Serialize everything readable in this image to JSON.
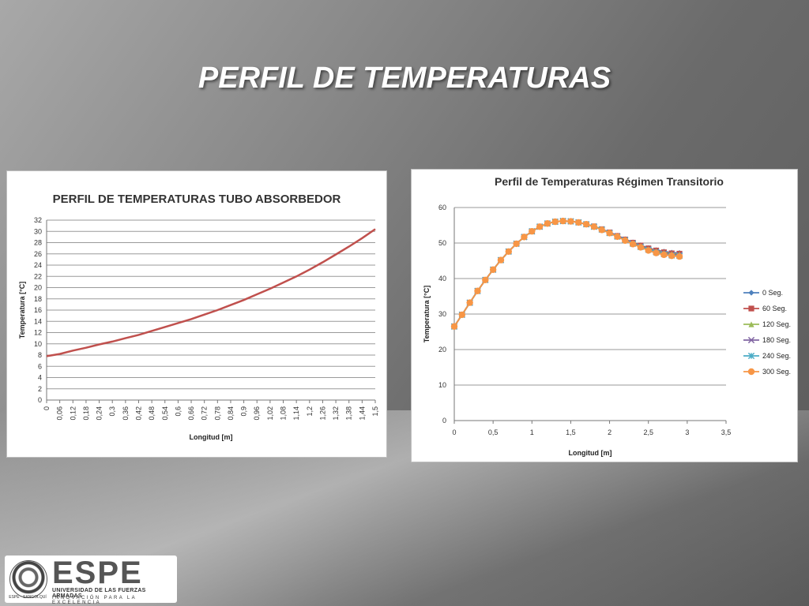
{
  "slide": {
    "title": "PERFIL DE TEMPERATURAS"
  },
  "logo": {
    "seal_text": "ESPE · SANGOLQUÍ",
    "word": "ESPE",
    "line1": "UNIVERSIDAD DE LAS FUERZAS ARMADAS",
    "line2": "INNOVACIÓN PARA LA EXCELENCIA"
  },
  "chart_data": [
    {
      "type": "line",
      "title": "PERFIL DE TEMPERATURAS TUBO ABSORBEDOR",
      "xlabel": "Longitud [m]",
      "ylabel": "Temperatura [°C]",
      "x_tick_labels": [
        "0",
        "0,06",
        "0,12",
        "0,18",
        "0,24",
        "0,3",
        "0,36",
        "0,42",
        "0,48",
        "0,54",
        "0,6",
        "0,66",
        "0,72",
        "0,78",
        "0,84",
        "0,9",
        "0,96",
        "1,02",
        "1,08",
        "1,14",
        "1,2",
        "1,26",
        "1,32",
        "1,38",
        "1,44",
        "1,5"
      ],
      "y_tick_labels": [
        "0",
        "2",
        "4",
        "6",
        "8",
        "10",
        "12",
        "14",
        "16",
        "18",
        "20",
        "22",
        "24",
        "26",
        "28",
        "30",
        "32"
      ],
      "ylim": [
        0,
        32
      ],
      "xlim": [
        0,
        1.5
      ],
      "grid": true,
      "color": "#c0504d",
      "x": [
        0,
        0.06,
        0.12,
        0.18,
        0.24,
        0.3,
        0.36,
        0.42,
        0.48,
        0.54,
        0.6,
        0.66,
        0.72,
        0.78,
        0.84,
        0.9,
        0.96,
        1.02,
        1.08,
        1.14,
        1.2,
        1.26,
        1.32,
        1.38,
        1.44,
        1.5
      ],
      "values": [
        7.8,
        8.2,
        8.8,
        9.3,
        9.9,
        10.4,
        11.0,
        11.6,
        12.3,
        13.0,
        13.7,
        14.4,
        15.2,
        16.0,
        16.9,
        17.8,
        18.8,
        19.8,
        20.9,
        22.0,
        23.2,
        24.5,
        25.9,
        27.3,
        28.8,
        30.4
      ]
    },
    {
      "type": "line",
      "title": "Perfil de Temperaturas Régimen Transitorio",
      "xlabel": "Longitud [m]",
      "ylabel": "Temperatura [°C]",
      "x_tick_labels": [
        "0",
        "0,5",
        "1",
        "1,5",
        "2",
        "2,5",
        "3",
        "3,5"
      ],
      "y_tick_labels": [
        "0",
        "10",
        "20",
        "30",
        "40",
        "50",
        "60"
      ],
      "xlim": [
        0,
        3.5
      ],
      "ylim": [
        0,
        60
      ],
      "grid": true,
      "legend_position": "right",
      "x": [
        0,
        0.1,
        0.2,
        0.3,
        0.4,
        0.5,
        0.6,
        0.7,
        0.8,
        0.9,
        1.0,
        1.1,
        1.2,
        1.3,
        1.4,
        1.5,
        1.6,
        1.7,
        1.8,
        1.9,
        2.0,
        2.1,
        2.2,
        2.3,
        2.4,
        2.5,
        2.6,
        2.7,
        2.8,
        2.9
      ],
      "series": [
        {
          "name": "0 Seg.",
          "color": "#4f81bd",
          "marker": "diamond",
          "values": [
            26.5,
            29.8,
            33.2,
            36.5,
            39.6,
            42.5,
            45.2,
            47.6,
            49.8,
            51.7,
            53.3,
            54.6,
            55.5,
            56.0,
            56.2,
            56.1,
            55.8,
            55.3,
            54.7,
            53.9,
            53.0,
            52.1,
            51.1,
            50.2,
            49.4,
            48.6,
            48.0,
            47.6,
            47.3,
            47.2
          ]
        },
        {
          "name": "60 Seg.",
          "color": "#c0504d",
          "marker": "square",
          "values": [
            26.5,
            29.8,
            33.2,
            36.5,
            39.6,
            42.5,
            45.2,
            47.6,
            49.8,
            51.7,
            53.3,
            54.6,
            55.5,
            56.0,
            56.2,
            56.1,
            55.8,
            55.3,
            54.7,
            53.9,
            53.0,
            52.0,
            51.0,
            50.1,
            49.3,
            48.5,
            47.9,
            47.4,
            47.1,
            47.0
          ]
        },
        {
          "name": "120 Seg.",
          "color": "#9bbb59",
          "marker": "triangle",
          "values": [
            26.5,
            29.8,
            33.2,
            36.5,
            39.6,
            42.5,
            45.2,
            47.6,
            49.8,
            51.7,
            53.3,
            54.6,
            55.5,
            56.0,
            56.2,
            56.1,
            55.8,
            55.3,
            54.7,
            53.9,
            52.9,
            51.9,
            50.9,
            50.0,
            49.1,
            48.3,
            47.7,
            47.2,
            46.9,
            46.8
          ]
        },
        {
          "name": "180 Seg.",
          "color": "#8064a2",
          "marker": "x",
          "values": [
            26.5,
            29.8,
            33.2,
            36.5,
            39.6,
            42.5,
            45.2,
            47.6,
            49.8,
            51.7,
            53.3,
            54.6,
            55.5,
            56.0,
            56.2,
            56.1,
            55.8,
            55.3,
            54.6,
            53.8,
            52.9,
            51.9,
            50.9,
            49.9,
            49.0,
            48.2,
            47.5,
            47.0,
            46.7,
            46.6
          ]
        },
        {
          "name": "240 Seg.",
          "color": "#4bacc6",
          "marker": "star",
          "values": [
            26.5,
            29.8,
            33.2,
            36.5,
            39.6,
            42.5,
            45.2,
            47.6,
            49.8,
            51.7,
            53.3,
            54.6,
            55.5,
            56.0,
            56.2,
            56.1,
            55.8,
            55.3,
            54.6,
            53.8,
            52.8,
            51.8,
            50.8,
            49.8,
            48.9,
            48.1,
            47.4,
            46.9,
            46.5,
            46.4
          ]
        },
        {
          "name": "300 Seg.",
          "color": "#f79646",
          "marker": "circle",
          "values": [
            26.5,
            29.8,
            33.2,
            36.5,
            39.6,
            42.5,
            45.2,
            47.6,
            49.8,
            51.7,
            53.3,
            54.6,
            55.5,
            56.0,
            56.2,
            56.1,
            55.8,
            55.3,
            54.6,
            53.7,
            52.8,
            51.8,
            50.7,
            49.7,
            48.8,
            47.9,
            47.2,
            46.7,
            46.4,
            46.2
          ]
        }
      ]
    }
  ]
}
